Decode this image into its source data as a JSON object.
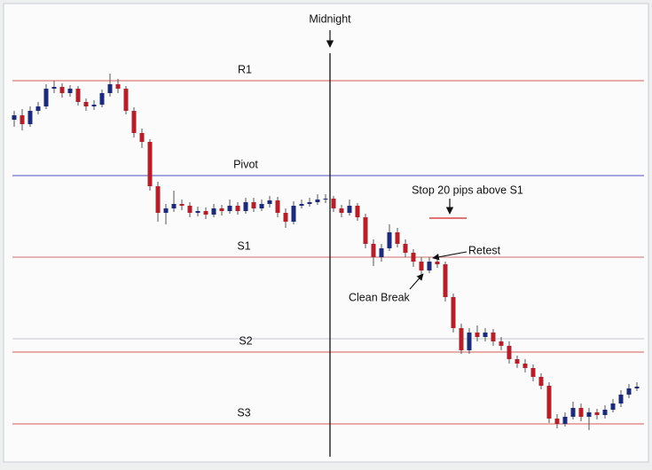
{
  "chart_data": {
    "type": "candlestick",
    "up_color": "#1c2a7a",
    "down_color": "#b3202a",
    "ylim": [
      0,
      510
    ],
    "open": [
      380,
      385,
      375,
      390,
      395,
      415,
      417,
      410,
      415,
      400,
      395,
      397,
      410,
      420,
      415,
      390,
      365,
      355,
      305,
      275,
      280,
      285,
      283,
      275,
      277,
      273,
      280,
      277,
      283,
      277,
      287,
      280,
      285,
      289,
      275,
      265,
      283,
      285,
      287,
      290,
      291,
      280,
      275,
      283,
      270,
      240,
      225,
      235,
      253,
      240,
      230,
      220,
      210,
      220,
      217,
      180,
      145,
      120,
      140,
      135,
      140,
      130,
      125,
      110,
      105,
      100,
      90,
      80,
      43,
      37,
      45,
      55,
      45,
      50,
      47,
      53,
      60,
      70,
      77
    ],
    "high": [
      390,
      392,
      395,
      400,
      420,
      424,
      421,
      419,
      418,
      404,
      402,
      414,
      432,
      426,
      418,
      394,
      370,
      358,
      310,
      285,
      300,
      290,
      287,
      282,
      281,
      285,
      284,
      290,
      287,
      292,
      292,
      290,
      294,
      293,
      280,
      288,
      290,
      292,
      296,
      296,
      294,
      284,
      290,
      286,
      274,
      245,
      240,
      262,
      258,
      245,
      234,
      225,
      225,
      224,
      220,
      184,
      150,
      145,
      148,
      145,
      144,
      135,
      130,
      114,
      110,
      104,
      94,
      84,
      48,
      50,
      62,
      60,
      55,
      54,
      58,
      65,
      75,
      82,
      84
    ],
    "low": [
      372,
      368,
      372,
      386,
      392,
      410,
      405,
      406,
      396,
      390,
      391,
      394,
      406,
      410,
      386,
      360,
      348,
      300,
      265,
      262,
      276,
      278,
      270,
      271,
      268,
      270,
      272,
      274,
      273,
      274,
      276,
      277,
      281,
      270,
      258,
      262,
      280,
      282,
      284,
      286,
      276,
      270,
      272,
      266,
      235,
      215,
      220,
      232,
      236,
      225,
      214,
      205,
      207,
      213,
      175,
      140,
      116,
      116,
      130,
      130,
      125,
      120,
      105,
      100,
      95,
      85,
      76,
      38,
      32,
      34,
      42,
      40,
      30,
      42,
      43,
      50,
      56,
      66,
      74
    ],
    "close": [
      385,
      375,
      390,
      395,
      415,
      417,
      410,
      415,
      400,
      395,
      397,
      410,
      420,
      415,
      390,
      365,
      355,
      305,
      275,
      280,
      285,
      283,
      275,
      277,
      273,
      280,
      277,
      283,
      277,
      287,
      280,
      285,
      289,
      275,
      265,
      283,
      285,
      287,
      290,
      291,
      280,
      275,
      283,
      270,
      240,
      225,
      235,
      253,
      240,
      230,
      220,
      210,
      220,
      217,
      180,
      145,
      120,
      140,
      135,
      140,
      130,
      125,
      110,
      105,
      100,
      90,
      80,
      43,
      37,
      45,
      55,
      45,
      50,
      47,
      53,
      60,
      70,
      77,
      79
    ],
    "levels": [
      {
        "name": "R1",
        "value": 424,
        "color": "#e07a7a"
      },
      {
        "name": "Pivot",
        "value": 317,
        "color": "#6f6fd0"
      },
      {
        "name": "S1",
        "value": 225,
        "color": "#d88a8a"
      },
      {
        "name": null,
        "value": 133,
        "color": "#cfcfd6"
      },
      {
        "name": "S2",
        "value": 118,
        "color": "#e07a7a"
      },
      {
        "name": "S3",
        "value": 37,
        "color": "#e07a7a"
      }
    ],
    "stop_level": {
      "label": "Stop 20 pips above S1",
      "value": 269,
      "color": "#d42020"
    },
    "annotations": {
      "midnight": "Midnight",
      "retest": "Retest",
      "clean_break": "Clean Break"
    }
  }
}
